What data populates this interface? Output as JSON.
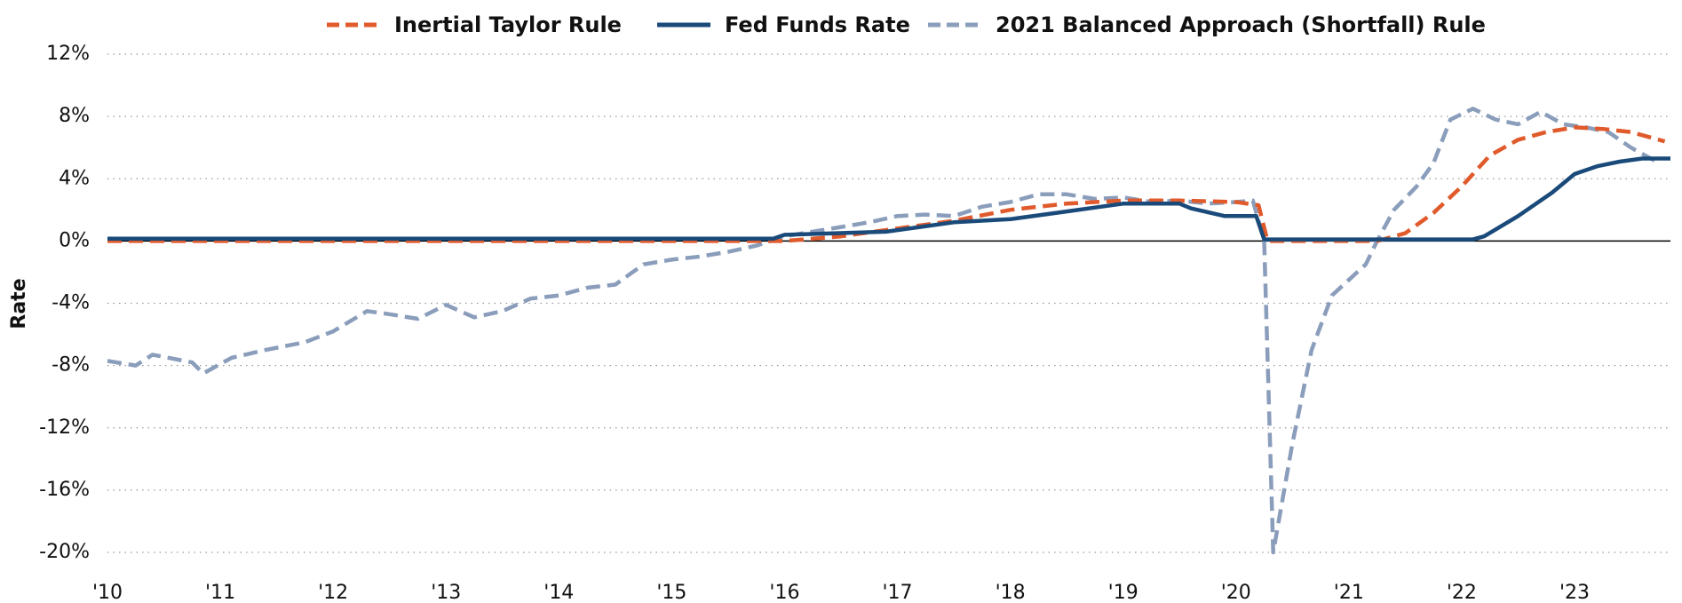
{
  "chart_data": {
    "type": "line",
    "y_label": "Rate",
    "xlim": [
      2010,
      2023.85
    ],
    "xticks": [
      {
        "value": 2010,
        "label": "'10"
      },
      {
        "value": 2011,
        "label": "'11"
      },
      {
        "value": 2012,
        "label": "'12"
      },
      {
        "value": 2013,
        "label": "'13"
      },
      {
        "value": 2014,
        "label": "'14"
      },
      {
        "value": 2015,
        "label": "'15"
      },
      {
        "value": 2016,
        "label": "'16"
      },
      {
        "value": 2017,
        "label": "'17"
      },
      {
        "value": 2018,
        "label": "'18"
      },
      {
        "value": 2019,
        "label": "'19"
      },
      {
        "value": 2020,
        "label": "'20"
      },
      {
        "value": 2021,
        "label": "'21"
      },
      {
        "value": 2022,
        "label": "'22"
      },
      {
        "value": 2023,
        "label": "'23"
      }
    ],
    "ylim": [
      -20,
      12
    ],
    "yticks": [
      {
        "value": -20,
        "label": "-20%"
      },
      {
        "value": -16,
        "label": "-16%"
      },
      {
        "value": -12,
        "label": "-12%"
      },
      {
        "value": -8,
        "label": "-8%"
      },
      {
        "value": -4,
        "label": "-4%"
      },
      {
        "value": 0,
        "label": "0%"
      },
      {
        "value": 4,
        "label": "4%"
      },
      {
        "value": 8,
        "label": "8%"
      },
      {
        "value": 12,
        "label": "12%"
      }
    ],
    "grid": true,
    "legend": "top",
    "series": [
      {
        "name": "Inertial Taylor Rule",
        "color": "#e05a2b",
        "dashed": true,
        "x": [
          2010,
          2016,
          2016.5,
          2017,
          2017.5,
          2018,
          2018.5,
          2019,
          2019.5,
          2020,
          2020.2,
          2020.28,
          2021.25,
          2021.5,
          2021.75,
          2022,
          2022.25,
          2022.5,
          2022.75,
          2023,
          2023.25,
          2023.5,
          2023.8
        ],
        "values": [
          0,
          0,
          0.3,
          0.8,
          1.3,
          2.0,
          2.4,
          2.6,
          2.6,
          2.5,
          2.3,
          0,
          0,
          0.5,
          1.8,
          3.5,
          5.5,
          6.5,
          7.0,
          7.3,
          7.2,
          7.0,
          6.4
        ]
      },
      {
        "name": "Fed Funds Rate",
        "color": "#1a4a7a",
        "dashed": false,
        "x": [
          2010,
          2015.9,
          2016,
          2016.9,
          2017.2,
          2017.5,
          2018,
          2018.5,
          2018.8,
          2019,
          2019.5,
          2019.6,
          2019.9,
          2020.18,
          2020.25,
          2022.1,
          2022.2,
          2022.5,
          2022.8,
          2023,
          2023.2,
          2023.4,
          2023.6,
          2023.85
        ],
        "values": [
          0.15,
          0.15,
          0.4,
          0.6,
          0.9,
          1.2,
          1.4,
          1.9,
          2.2,
          2.4,
          2.4,
          2.1,
          1.6,
          1.6,
          0.1,
          0.1,
          0.3,
          1.6,
          3.1,
          4.3,
          4.8,
          5.1,
          5.3,
          5.3
        ]
      },
      {
        "name": "2021 Balanced Approach (Shortfall) Rule",
        "color": "#8a9dbb",
        "dashed": true,
        "x": [
          2010,
          2010.25,
          2010.4,
          2010.75,
          2010.85,
          2011.1,
          2011.4,
          2011.75,
          2012,
          2012.3,
          2012.5,
          2012.75,
          2013,
          2013.25,
          2013.5,
          2013.75,
          2014,
          2014.25,
          2014.5,
          2014.75,
          2015,
          2015.25,
          2015.5,
          2015.75,
          2016,
          2016.25,
          2016.5,
          2016.75,
          2017,
          2017.25,
          2017.5,
          2017.75,
          2018,
          2018.25,
          2018.5,
          2018.75,
          2019,
          2019.25,
          2019.5,
          2019.75,
          2020,
          2020.15,
          2020.25,
          2020.33,
          2020.5,
          2020.67,
          2020.85,
          2021,
          2021.15,
          2021.25,
          2021.4,
          2021.6,
          2021.75,
          2021.9,
          2022.1,
          2022.3,
          2022.5,
          2022.7,
          2022.9,
          2023.1,
          2023.3,
          2023.5,
          2023.75
        ],
        "values": [
          -7.7,
          -8.0,
          -7.3,
          -7.8,
          -8.5,
          -7.5,
          -7.0,
          -6.5,
          -5.8,
          -4.5,
          -4.7,
          -5.0,
          -4.1,
          -4.9,
          -4.5,
          -3.7,
          -3.5,
          -3.0,
          -2.8,
          -1.5,
          -1.2,
          -1.0,
          -0.7,
          -0.3,
          0.3,
          0.6,
          0.9,
          1.2,
          1.6,
          1.7,
          1.6,
          2.2,
          2.5,
          3.0,
          3.0,
          2.7,
          2.8,
          2.5,
          2.6,
          2.4,
          2.5,
          2.6,
          0,
          -20,
          -13,
          -7,
          -3.5,
          -2.5,
          -1.5,
          0,
          2.0,
          3.5,
          5.0,
          7.8,
          8.5,
          7.8,
          7.5,
          8.3,
          7.5,
          7.3,
          7.0,
          6.0,
          5.0
        ]
      }
    ]
  }
}
